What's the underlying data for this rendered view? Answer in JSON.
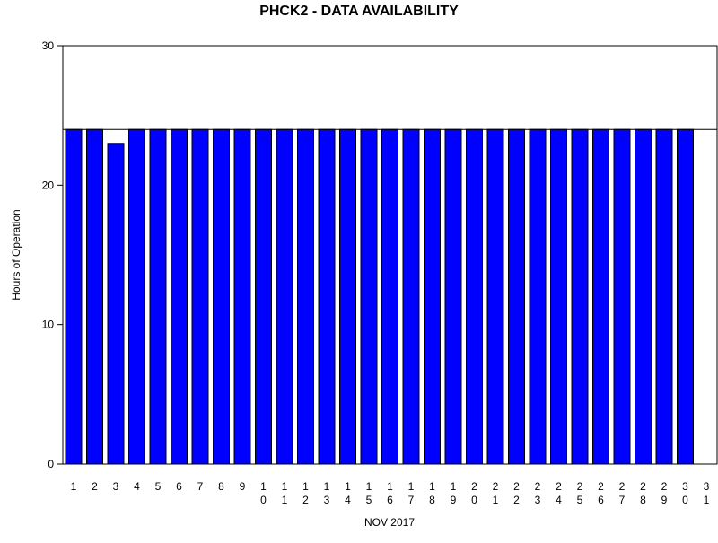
{
  "chart_data": {
    "type": "bar",
    "title": "PHCK2 - DATA AVAILABILITY",
    "xlabel": "NOV 2017",
    "ylabel": "Hours of Operation",
    "ylim": [
      0,
      30
    ],
    "yticks": [
      0,
      10,
      20,
      30
    ],
    "reference_line": 24,
    "grid": false,
    "categories": [
      "1",
      "2",
      "3",
      "4",
      "5",
      "6",
      "7",
      "8",
      "9",
      "10",
      "11",
      "12",
      "13",
      "14",
      "15",
      "16",
      "17",
      "18",
      "19",
      "20",
      "21",
      "22",
      "23",
      "24",
      "25",
      "26",
      "27",
      "28",
      "29",
      "30",
      "31"
    ],
    "values": [
      24,
      24,
      23,
      24,
      24,
      24,
      24,
      24,
      24,
      24,
      24,
      24,
      24,
      24,
      24,
      24,
      24,
      24,
      24,
      24,
      24,
      24,
      24,
      24,
      24,
      24,
      24,
      24,
      24,
      24,
      null
    ],
    "colors": {
      "bar_fill": "#0000ff",
      "bar_stroke": "#000000",
      "axis": "#000000",
      "reference_line": "#000000"
    }
  }
}
